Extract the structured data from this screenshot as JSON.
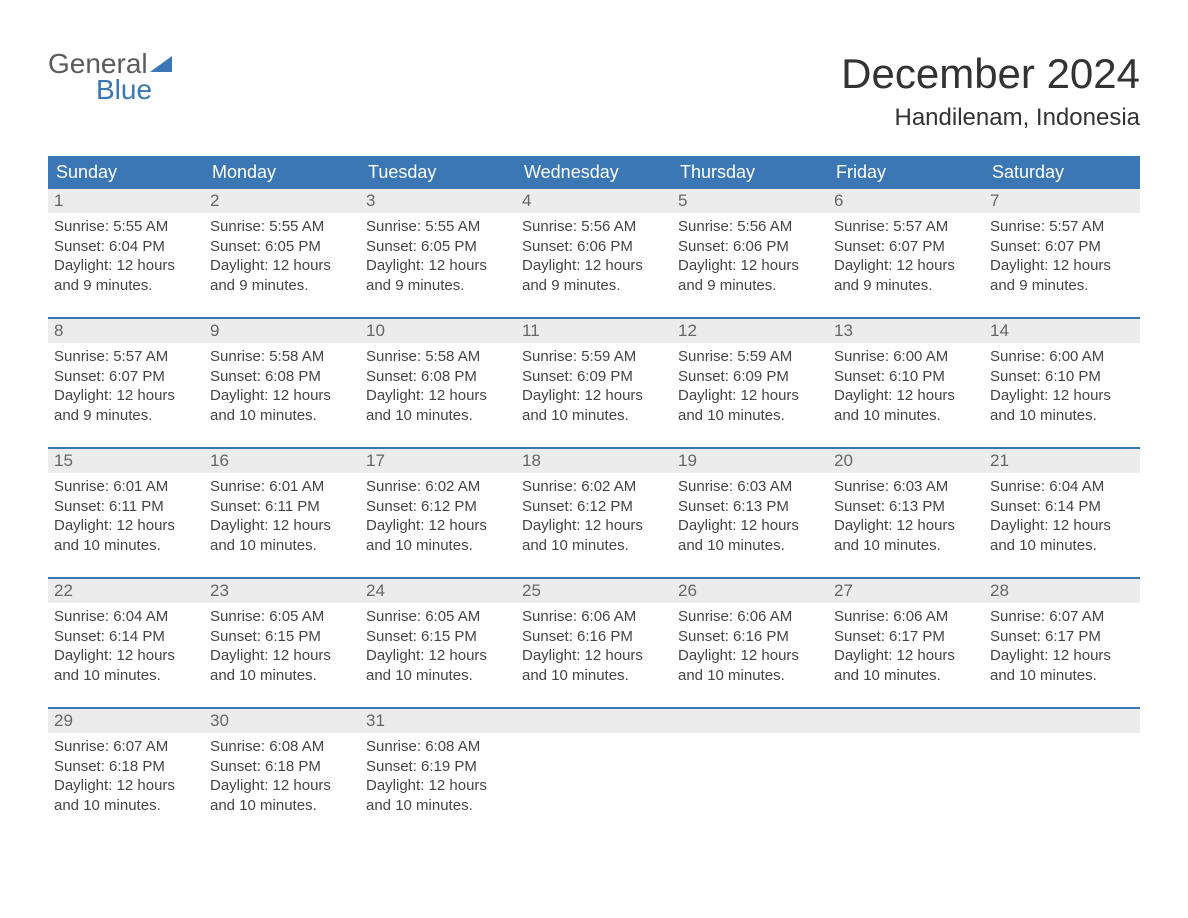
{
  "logo": {
    "top": "General",
    "bottom": "Blue",
    "flag_color": "#3b76b5"
  },
  "title": "December 2024",
  "location": "Handilenam, Indonesia",
  "colors": {
    "header_bg": "#3b76b5",
    "header_text": "#ffffff",
    "daynum_bg": "#ececec",
    "text": "#444444",
    "accent": "#3b76b5"
  },
  "weekdays": [
    "Sunday",
    "Monday",
    "Tuesday",
    "Wednesday",
    "Thursday",
    "Friday",
    "Saturday"
  ],
  "labels": {
    "sunrise": "Sunrise:",
    "sunset": "Sunset:",
    "daylight": "Daylight:"
  },
  "days": [
    {
      "n": 1,
      "sunrise": "5:55 AM",
      "sunset": "6:04 PM",
      "daylight": "12 hours and 9 minutes."
    },
    {
      "n": 2,
      "sunrise": "5:55 AM",
      "sunset": "6:05 PM",
      "daylight": "12 hours and 9 minutes."
    },
    {
      "n": 3,
      "sunrise": "5:55 AM",
      "sunset": "6:05 PM",
      "daylight": "12 hours and 9 minutes."
    },
    {
      "n": 4,
      "sunrise": "5:56 AM",
      "sunset": "6:06 PM",
      "daylight": "12 hours and 9 minutes."
    },
    {
      "n": 5,
      "sunrise": "5:56 AM",
      "sunset": "6:06 PM",
      "daylight": "12 hours and 9 minutes."
    },
    {
      "n": 6,
      "sunrise": "5:57 AM",
      "sunset": "6:07 PM",
      "daylight": "12 hours and 9 minutes."
    },
    {
      "n": 7,
      "sunrise": "5:57 AM",
      "sunset": "6:07 PM",
      "daylight": "12 hours and 9 minutes."
    },
    {
      "n": 8,
      "sunrise": "5:57 AM",
      "sunset": "6:07 PM",
      "daylight": "12 hours and 9 minutes."
    },
    {
      "n": 9,
      "sunrise": "5:58 AM",
      "sunset": "6:08 PM",
      "daylight": "12 hours and 10 minutes."
    },
    {
      "n": 10,
      "sunrise": "5:58 AM",
      "sunset": "6:08 PM",
      "daylight": "12 hours and 10 minutes."
    },
    {
      "n": 11,
      "sunrise": "5:59 AM",
      "sunset": "6:09 PM",
      "daylight": "12 hours and 10 minutes."
    },
    {
      "n": 12,
      "sunrise": "5:59 AM",
      "sunset": "6:09 PM",
      "daylight": "12 hours and 10 minutes."
    },
    {
      "n": 13,
      "sunrise": "6:00 AM",
      "sunset": "6:10 PM",
      "daylight": "12 hours and 10 minutes."
    },
    {
      "n": 14,
      "sunrise": "6:00 AM",
      "sunset": "6:10 PM",
      "daylight": "12 hours and 10 minutes."
    },
    {
      "n": 15,
      "sunrise": "6:01 AM",
      "sunset": "6:11 PM",
      "daylight": "12 hours and 10 minutes."
    },
    {
      "n": 16,
      "sunrise": "6:01 AM",
      "sunset": "6:11 PM",
      "daylight": "12 hours and 10 minutes."
    },
    {
      "n": 17,
      "sunrise": "6:02 AM",
      "sunset": "6:12 PM",
      "daylight": "12 hours and 10 minutes."
    },
    {
      "n": 18,
      "sunrise": "6:02 AM",
      "sunset": "6:12 PM",
      "daylight": "12 hours and 10 minutes."
    },
    {
      "n": 19,
      "sunrise": "6:03 AM",
      "sunset": "6:13 PM",
      "daylight": "12 hours and 10 minutes."
    },
    {
      "n": 20,
      "sunrise": "6:03 AM",
      "sunset": "6:13 PM",
      "daylight": "12 hours and 10 minutes."
    },
    {
      "n": 21,
      "sunrise": "6:04 AM",
      "sunset": "6:14 PM",
      "daylight": "12 hours and 10 minutes."
    },
    {
      "n": 22,
      "sunrise": "6:04 AM",
      "sunset": "6:14 PM",
      "daylight": "12 hours and 10 minutes."
    },
    {
      "n": 23,
      "sunrise": "6:05 AM",
      "sunset": "6:15 PM",
      "daylight": "12 hours and 10 minutes."
    },
    {
      "n": 24,
      "sunrise": "6:05 AM",
      "sunset": "6:15 PM",
      "daylight": "12 hours and 10 minutes."
    },
    {
      "n": 25,
      "sunrise": "6:06 AM",
      "sunset": "6:16 PM",
      "daylight": "12 hours and 10 minutes."
    },
    {
      "n": 26,
      "sunrise": "6:06 AM",
      "sunset": "6:16 PM",
      "daylight": "12 hours and 10 minutes."
    },
    {
      "n": 27,
      "sunrise": "6:06 AM",
      "sunset": "6:17 PM",
      "daylight": "12 hours and 10 minutes."
    },
    {
      "n": 28,
      "sunrise": "6:07 AM",
      "sunset": "6:17 PM",
      "daylight": "12 hours and 10 minutes."
    },
    {
      "n": 29,
      "sunrise": "6:07 AM",
      "sunset": "6:18 PM",
      "daylight": "12 hours and 10 minutes."
    },
    {
      "n": 30,
      "sunrise": "6:08 AM",
      "sunset": "6:18 PM",
      "daylight": "12 hours and 10 minutes."
    },
    {
      "n": 31,
      "sunrise": "6:08 AM",
      "sunset": "6:19 PM",
      "daylight": "12 hours and 10 minutes."
    }
  ],
  "start_weekday": 0,
  "layout": {
    "columns": 7,
    "rows": 5
  }
}
